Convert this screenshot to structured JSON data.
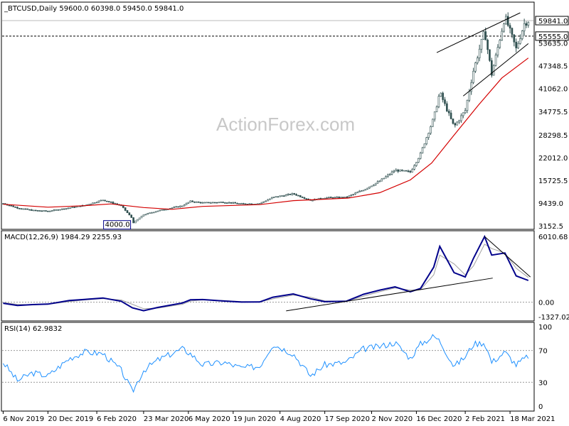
{
  "chart_data": [
    {
      "type": "candlestick",
      "symbol": "BTCUSD",
      "timeframe": "Daily",
      "header_text": "_BTCUSD,Daily  59600.0 60398.0 59450.0 59841.0",
      "ohlc": {
        "open": 59600.0,
        "high": 60398.0,
        "low": 59450.0,
        "close": 59841.0
      },
      "yaxis_ticks": [
        "3152.5",
        "9439.0",
        "15725.5",
        "22012.0",
        "28298.5",
        "34775.5",
        "41062.0",
        "47348.5",
        "53635.0"
      ],
      "yaxis_tick_values": [
        3152.5,
        9439.0,
        15725.5,
        22012.0,
        28298.5,
        34775.5,
        41062.0,
        47348.5,
        53635.0
      ],
      "ylim": [
        3152.5,
        62000
      ],
      "price_label": "59841.0",
      "level_label": "55555.0",
      "level_value": 55555.0,
      "low_annotation": "4000.0",
      "low_annotation_value": 4000.0,
      "line_colors": {
        "candles": "#2f4f4f",
        "moving_average": "#d40000",
        "level_line": "#000000",
        "trend_lines": "#000000"
      },
      "price_series": [
        [
          "2019-11-06",
          9300
        ],
        [
          "2019-11-20",
          8100
        ],
        [
          "2019-12-05",
          7400
        ],
        [
          "2019-12-20",
          7200
        ],
        [
          "2020-01-10",
          8100
        ],
        [
          "2020-01-25",
          8800
        ],
        [
          "2020-02-12",
          10300
        ],
        [
          "2020-03-01",
          8700
        ],
        [
          "2020-03-12",
          5100
        ],
        [
          "2020-03-13",
          4000
        ],
        [
          "2020-03-23",
          6200
        ],
        [
          "2020-04-06",
          7300
        ],
        [
          "2020-04-30",
          8700
        ],
        [
          "2020-05-08",
          9900
        ],
        [
          "2020-05-20",
          9500
        ],
        [
          "2020-06-10",
          9700
        ],
        [
          "2020-06-27",
          9200
        ],
        [
          "2020-07-15",
          9300
        ],
        [
          "2020-07-28",
          11000
        ],
        [
          "2020-08-17",
          12000
        ],
        [
          "2020-09-03",
          10200
        ],
        [
          "2020-09-17",
          10900
        ],
        [
          "2020-10-08",
          11000
        ],
        [
          "2020-10-25",
          13100
        ],
        [
          "2020-11-10",
          15500
        ],
        [
          "2020-11-25",
          18500
        ],
        [
          "2020-12-10",
          18000
        ],
        [
          "2020-12-20",
          23000
        ],
        [
          "2021-01-02",
          33000
        ],
        [
          "2021-01-08",
          40000
        ],
        [
          "2021-01-22",
          30500
        ],
        [
          "2021-02-02",
          35000
        ],
        [
          "2021-02-10",
          46000
        ],
        [
          "2021-02-21",
          57000
        ],
        [
          "2021-02-28",
          45000
        ],
        [
          "2021-03-13",
          61000
        ],
        [
          "2021-03-24",
          52000
        ],
        [
          "2021-04-01",
          59000
        ],
        [
          "2021-04-05",
          59841
        ]
      ],
      "moving_average": [
        [
          "2019-11-06",
          9100
        ],
        [
          "2019-12-20",
          8300
        ],
        [
          "2020-01-25",
          8700
        ],
        [
          "2020-02-20",
          9200
        ],
        [
          "2020-03-23",
          8200
        ],
        [
          "2020-04-20",
          7700
        ],
        [
          "2020-05-20",
          8500
        ],
        [
          "2020-07-15",
          9000
        ],
        [
          "2020-08-17",
          10100
        ],
        [
          "2020-10-10",
          10800
        ],
        [
          "2020-11-10",
          12300
        ],
        [
          "2020-12-10",
          15800
        ],
        [
          "2020-12-31",
          20500
        ],
        [
          "2021-01-20",
          27500
        ],
        [
          "2021-02-15",
          36500
        ],
        [
          "2021-03-10",
          44000
        ],
        [
          "2021-04-05",
          49500
        ]
      ],
      "trend_lines": [
        [
          [
            "2021-01-05",
            51000
          ],
          [
            "2021-03-28",
            62000
          ]
        ],
        [
          [
            "2021-01-31",
            39000
          ],
          [
            "2021-04-05",
            53500
          ]
        ]
      ]
    },
    {
      "type": "line",
      "title": "MACD(12,26,9) 1984.29 2255.93",
      "yaxis_ticks": [
        "6010.68",
        "0.00",
        "-1327.02"
      ],
      "yaxis_tick_values": [
        6010.68,
        0.0,
        -1327.02
      ],
      "ylim": [
        -1327.02,
        6010.68
      ],
      "zero_label": "0.00",
      "series": [
        {
          "color": "#00008b",
          "points": [
            [
              "2019-11-06",
              -100
            ],
            [
              "2019-11-20",
              -300
            ],
            [
              "2019-12-05",
              -220
            ],
            [
              "2019-12-20",
              -180
            ],
            [
              "2020-01-10",
              150
            ],
            [
              "2020-01-25",
              250
            ],
            [
              "2020-02-12",
              380
            ],
            [
              "2020-03-01",
              80
            ],
            [
              "2020-03-12",
              -520
            ],
            [
              "2020-03-23",
              -780
            ],
            [
              "2020-04-06",
              -480
            ],
            [
              "2020-04-30",
              -80
            ],
            [
              "2020-05-08",
              210
            ],
            [
              "2020-05-20",
              240
            ],
            [
              "2020-06-10",
              100
            ],
            [
              "2020-06-27",
              10
            ],
            [
              "2020-07-15",
              20
            ],
            [
              "2020-07-28",
              450
            ],
            [
              "2020-08-17",
              750
            ],
            [
              "2020-09-03",
              310
            ],
            [
              "2020-09-17",
              40
            ],
            [
              "2020-10-08",
              80
            ],
            [
              "2020-10-25",
              720
            ],
            [
              "2020-11-10",
              1100
            ],
            [
              "2020-11-25",
              1400
            ],
            [
              "2020-12-10",
              950
            ],
            [
              "2020-12-20",
              1250
            ],
            [
              "2021-01-02",
              3200
            ],
            [
              "2021-01-08",
              5100
            ],
            [
              "2021-01-22",
              2700
            ],
            [
              "2021-02-02",
              2300
            ],
            [
              "2021-02-10",
              4000
            ],
            [
              "2021-02-21",
              6000
            ],
            [
              "2021-02-28",
              4300
            ],
            [
              "2021-03-13",
              4500
            ],
            [
              "2021-03-24",
              2400
            ],
            [
              "2021-04-05",
              1984
            ]
          ]
        },
        {
          "color": "#a0a0a0",
          "points": [
            [
              "2019-11-06",
              -50
            ],
            [
              "2019-11-20",
              -200
            ],
            [
              "2019-12-05",
              -240
            ],
            [
              "2019-12-20",
              -200
            ],
            [
              "2020-01-10",
              50
            ],
            [
              "2020-01-25",
              200
            ],
            [
              "2020-02-12",
              320
            ],
            [
              "2020-03-01",
              200
            ],
            [
              "2020-03-12",
              -200
            ],
            [
              "2020-03-23",
              -600
            ],
            [
              "2020-04-06",
              -550
            ],
            [
              "2020-04-30",
              -200
            ],
            [
              "2020-05-08",
              100
            ],
            [
              "2020-05-20",
              200
            ],
            [
              "2020-06-10",
              150
            ],
            [
              "2020-06-27",
              50
            ],
            [
              "2020-07-15",
              20
            ],
            [
              "2020-07-28",
              300
            ],
            [
              "2020-08-17",
              650
            ],
            [
              "2020-09-03",
              450
            ],
            [
              "2020-09-17",
              120
            ],
            [
              "2020-10-08",
              80
            ],
            [
              "2020-10-25",
              550
            ],
            [
              "2020-11-10",
              950
            ],
            [
              "2020-11-25",
              1300
            ],
            [
              "2020-12-10",
              1100
            ],
            [
              "2020-12-20",
              1150
            ],
            [
              "2021-01-02",
              2500
            ],
            [
              "2021-01-08",
              4300
            ],
            [
              "2021-01-22",
              3500
            ],
            [
              "2021-02-02",
              2500
            ],
            [
              "2021-02-10",
              3300
            ],
            [
              "2021-02-21",
              5300
            ],
            [
              "2021-02-28",
              4900
            ],
            [
              "2021-03-13",
              4500
            ],
            [
              "2021-03-24",
              3100
            ],
            [
              "2021-04-05",
              2256
            ]
          ]
        }
      ],
      "trend_lines": [
        [
          [
            "2020-08-10",
            -800
          ],
          [
            "2021-03-01",
            2200
          ]
        ],
        [
          [
            "2021-02-21",
            6000
          ],
          [
            "2021-04-07",
            2300
          ]
        ]
      ]
    },
    {
      "type": "line",
      "title": "RSI(14) 62.9832",
      "yaxis_ticks": [
        "100",
        "70",
        "30",
        "0"
      ],
      "yaxis_tick_values": [
        100,
        70,
        30,
        0
      ],
      "ylim": [
        0,
        100
      ],
      "reference_levels": [
        70,
        30
      ],
      "series": [
        {
          "color": "#1e90ff",
          "points": [
            [
              "2019-11-06",
              55
            ],
            [
              "2019-11-20",
              32
            ],
            [
              "2019-12-05",
              42
            ],
            [
              "2019-12-20",
              38
            ],
            [
              "2020-01-10",
              60
            ],
            [
              "2020-01-25",
              68
            ],
            [
              "2020-02-12",
              66
            ],
            [
              "2020-03-01",
              45
            ],
            [
              "2020-03-12",
              18
            ],
            [
              "2020-03-23",
              45
            ],
            [
              "2020-04-06",
              58
            ],
            [
              "2020-04-30",
              72
            ],
            [
              "2020-05-08",
              66
            ],
            [
              "2020-05-20",
              52
            ],
            [
              "2020-06-10",
              55
            ],
            [
              "2020-06-27",
              48
            ],
            [
              "2020-07-15",
              50
            ],
            [
              "2020-07-28",
              78
            ],
            [
              "2020-08-17",
              66
            ],
            [
              "2020-09-03",
              38
            ],
            [
              "2020-09-17",
              52
            ],
            [
              "2020-10-08",
              55
            ],
            [
              "2020-10-25",
              72
            ],
            [
              "2020-11-10",
              75
            ],
            [
              "2020-11-25",
              80
            ],
            [
              "2020-12-10",
              60
            ],
            [
              "2020-12-20",
              78
            ],
            [
              "2021-01-02",
              88
            ],
            [
              "2021-01-08",
              82
            ],
            [
              "2021-01-22",
              50
            ],
            [
              "2021-02-02",
              62
            ],
            [
              "2021-02-10",
              78
            ],
            [
              "2021-02-21",
              80
            ],
            [
              "2021-02-28",
              55
            ],
            [
              "2021-03-13",
              68
            ],
            [
              "2021-03-24",
              52
            ],
            [
              "2021-04-05",
              63
            ]
          ]
        }
      ]
    }
  ],
  "x_axis": {
    "ticks": [
      "6 Nov 2019",
      "20 Dec 2019",
      "6 Feb 2020",
      "23 Mar 2020",
      "6 May 2020",
      "19 Jun 2020",
      "4 Aug 2020",
      "17 Sep 2020",
      "2 Nov 2020",
      "16 Dec 2020",
      "2 Feb 2021",
      "18 Mar 2021"
    ],
    "tick_dates": [
      "2019-11-06",
      "2019-12-20",
      "2020-02-06",
      "2020-03-23",
      "2020-05-06",
      "2020-06-19",
      "2020-08-04",
      "2020-09-17",
      "2020-11-02",
      "2020-12-16",
      "2021-02-02",
      "2021-03-18"
    ],
    "range": [
      "2019-11-05",
      "2021-04-10"
    ]
  },
  "watermark": "ActionForex.com"
}
